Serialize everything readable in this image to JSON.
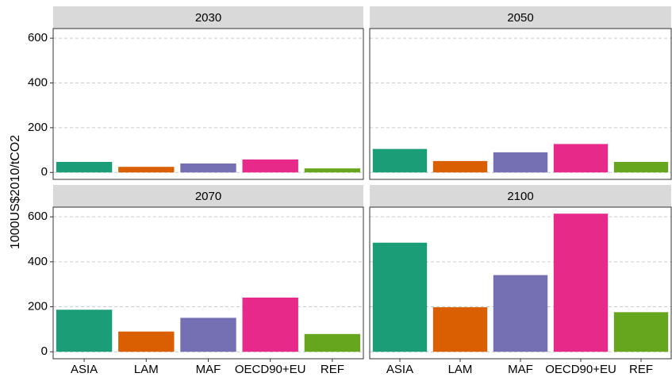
{
  "chart_data": {
    "type": "bar",
    "y_label": "1000US$2010/tCO2",
    "categories": [
      "ASIA",
      "LAM",
      "MAF",
      "OECD90+EU",
      "REF"
    ],
    "colors": [
      "#1b9e77",
      "#d95f02",
      "#7570b3",
      "#e7298a",
      "#66a61e"
    ],
    "ylim": [
      -31,
      643
    ],
    "yticks": [
      0,
      200,
      400,
      600
    ],
    "grid": true,
    "facets": [
      {
        "title": "2030",
        "values": [
          47,
          25,
          40,
          58,
          18
        ]
      },
      {
        "title": "2050",
        "values": [
          105,
          51,
          90,
          127,
          47
        ]
      },
      {
        "title": "2070",
        "values": [
          187,
          90,
          151,
          241,
          79
        ]
      },
      {
        "title": "2100",
        "values": [
          485,
          198,
          341,
          614,
          176
        ]
      }
    ]
  }
}
